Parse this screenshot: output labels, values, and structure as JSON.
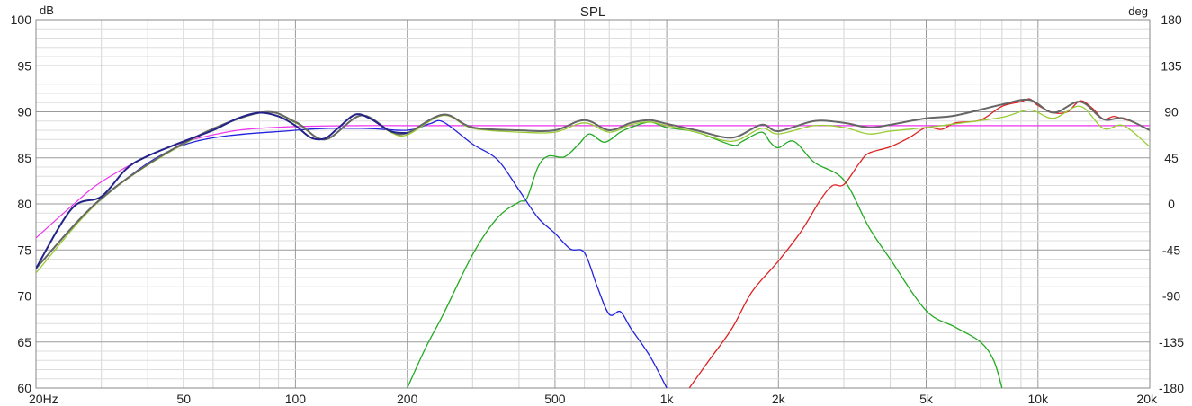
{
  "chart_data": {
    "type": "line",
    "title": "SPL",
    "ylabel": "dB",
    "y2label": "deg",
    "xscale": "log",
    "xlim": [
      20,
      20000
    ],
    "ylim": [
      60,
      100
    ],
    "y2lim": [
      -180,
      180
    ],
    "grid": true,
    "x_ticks": [
      {
        "value": 20,
        "label": "20Hz"
      },
      {
        "value": 50,
        "label": "50"
      },
      {
        "value": 100,
        "label": "100"
      },
      {
        "value": 200,
        "label": "200"
      },
      {
        "value": 500,
        "label": "500"
      },
      {
        "value": 1000,
        "label": "1k"
      },
      {
        "value": 2000,
        "label": "2k"
      },
      {
        "value": 5000,
        "label": "5k"
      },
      {
        "value": 10000,
        "label": "10k"
      },
      {
        "value": 20000,
        "label": "20k"
      }
    ],
    "y_ticks": [
      "100",
      "95",
      "90",
      "85",
      "80",
      "75",
      "70",
      "65",
      "60"
    ],
    "y2_ticks": [
      "180",
      "135",
      "90",
      "45",
      "0",
      "-45",
      "-90",
      "-135",
      "-180"
    ],
    "series": [
      {
        "color": "#ee33ee",
        "x": [
          20,
          25,
          30,
          40,
          50,
          60,
          70,
          80,
          100,
          150,
          200,
          500,
          1000,
          5000,
          20000
        ],
        "y": [
          76.3,
          79.8,
          82.4,
          85.2,
          86.7,
          87.5,
          88.0,
          88.2,
          88.4,
          88.5,
          88.5,
          88.5,
          88.5,
          88.5,
          88.5
        ]
      },
      {
        "color": "#22aa22",
        "x": [
          200,
          225,
          250,
          300,
          350,
          400,
          420,
          450,
          480,
          530,
          580,
          620,
          680,
          750,
          800,
          900,
          1000,
          1200,
          1500,
          1600,
          1800,
          1900,
          2000,
          2200,
          2500,
          3000,
          3500,
          4000,
          5000,
          6000,
          7000,
          7600,
          8000
        ],
        "y": [
          60.0,
          64.5,
          68.0,
          74.5,
          78.5,
          80.2,
          80.6,
          84.0,
          85.2,
          85.1,
          86.5,
          87.6,
          86.7,
          87.8,
          88.3,
          88.9,
          88.3,
          87.8,
          86.4,
          86.8,
          87.8,
          86.7,
          86.1,
          86.8,
          84.5,
          82.6,
          77.5,
          74.0,
          68.4,
          66.6,
          65.0,
          63.0,
          60.0
        ]
      },
      {
        "color": "#2222dd",
        "x": [
          20,
          30,
          50,
          100,
          150,
          200,
          230,
          250,
          300,
          350,
          400,
          450,
          500,
          550,
          600,
          650,
          700,
          750,
          800,
          900,
          1000
        ],
        "y": [
          73.0,
          80.5,
          86.4,
          88.0,
          88.2,
          88.0,
          88.7,
          88.9,
          86.5,
          84.8,
          81.5,
          78.5,
          76.8,
          75.1,
          74.7,
          71.0,
          68.0,
          68.3,
          66.5,
          63.5,
          60.0
        ]
      },
      {
        "color": "#dd2222",
        "x": [
          1150,
          1300,
          1500,
          1700,
          2000,
          2300,
          2600,
          2800,
          3000,
          3300,
          3500,
          4000,
          4500,
          5000,
          5500,
          6000,
          7000,
          8000,
          9000,
          9500,
          10000,
          11000,
          12000,
          13000,
          14000,
          15000,
          16000,
          17000,
          18000,
          20000
        ],
        "y": [
          60.0,
          63.0,
          66.5,
          70.5,
          73.8,
          77.0,
          80.5,
          82.0,
          82.1,
          84.4,
          85.5,
          86.2,
          87.2,
          88.3,
          88.1,
          88.8,
          89.1,
          90.6,
          91.1,
          91.4,
          90.7,
          89.9,
          90.0,
          91.2,
          90.4,
          89.2,
          89.5,
          89.2,
          88.9,
          88.0
        ]
      },
      {
        "color": "#99cc33",
        "x": [
          20,
          30,
          50,
          80,
          100,
          120,
          150,
          180,
          200,
          250,
          300,
          400,
          500,
          600,
          700,
          800,
          900,
          1000,
          1200,
          1500,
          1800,
          2000,
          2500,
          3000,
          3500,
          4000,
          5000,
          6000,
          8000,
          9500,
          11000,
          13000,
          15000,
          17000,
          20000
        ],
        "y": [
          72.5,
          80.5,
          86.5,
          89.9,
          88.8,
          87.0,
          89.6,
          87.8,
          87.5,
          89.6,
          88.2,
          87.8,
          87.8,
          88.8,
          87.8,
          88.6,
          88.9,
          88.5,
          87.8,
          86.8,
          88.2,
          87.6,
          88.5,
          88.3,
          87.6,
          87.9,
          88.3,
          88.7,
          89.4,
          90.2,
          89.3,
          90.6,
          88.2,
          88.5,
          86.2
        ]
      },
      {
        "color": "#666666",
        "x": [
          20,
          30,
          50,
          80,
          100,
          120,
          150,
          180,
          200,
          250,
          300,
          400,
          500,
          600,
          700,
          800,
          900,
          1000,
          1200,
          1500,
          1800,
          2000,
          2500,
          3000,
          3500,
          4000,
          5000,
          6000,
          8000,
          9500,
          11000,
          13000,
          15000,
          17000,
          20000
        ],
        "y": [
          73.0,
          80.6,
          86.6,
          89.9,
          88.9,
          87.0,
          89.6,
          87.9,
          87.7,
          89.7,
          88.3,
          88.0,
          88.0,
          89.1,
          88.0,
          88.8,
          89.1,
          88.7,
          88.0,
          87.2,
          88.6,
          87.9,
          89.0,
          88.8,
          88.3,
          88.6,
          89.3,
          89.6,
          90.8,
          91.3,
          89.9,
          91.1,
          89.2,
          89.3,
          88.0
        ]
      },
      {
        "color": "#222288",
        "x": [
          20,
          25,
          30,
          35,
          40,
          50,
          60,
          70,
          80,
          90,
          100,
          110,
          120,
          130,
          145,
          160,
          180,
          200
        ],
        "y": [
          73.0,
          79.5,
          80.8,
          83.8,
          85.2,
          86.8,
          88.0,
          89.3,
          89.9,
          89.5,
          88.5,
          87.2,
          87.1,
          88.2,
          89.7,
          89.2,
          87.9,
          87.7
        ]
      }
    ]
  }
}
